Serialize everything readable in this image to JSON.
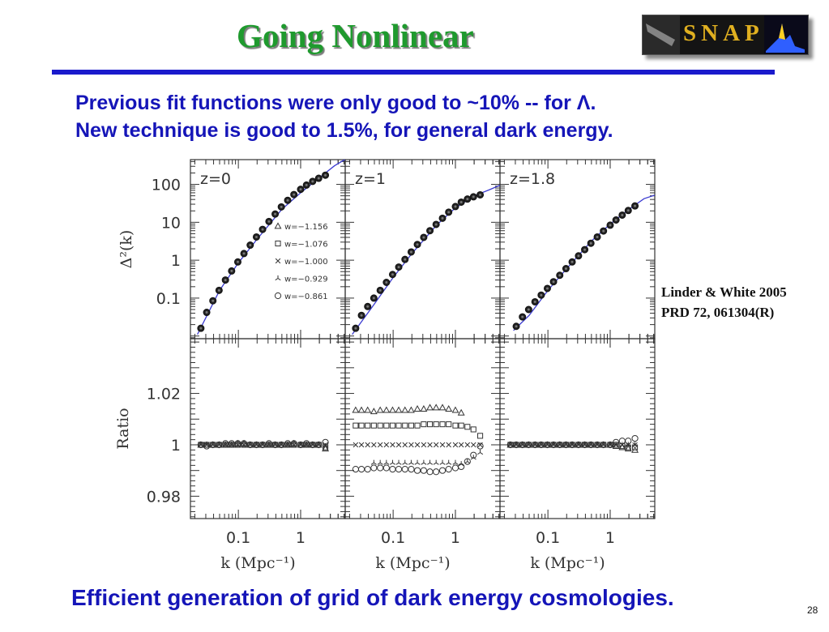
{
  "slide": {
    "title": "Going Nonlinear",
    "bullets": [
      "Previous fit functions were only good to ~10% -- for Λ.",
      "New technique is good to 1.5%, for general dark energy."
    ],
    "citation": [
      "Linder & White 2005",
      "PRD 72, 061304(R)"
    ],
    "footer": "Efficient generation of grid of dark energy cosmologies.",
    "page_number": "28",
    "logo_text": "SNAP"
  },
  "colors": {
    "title": "#1f9a2e",
    "rule": "#1a1acc",
    "text": "#1515b8",
    "model_curve": "#3a3ad0",
    "markers": "#333333"
  },
  "chart_data": {
    "type": "scatter",
    "layout": "2 rows x 3 columns",
    "x": {
      "label": "k (Mpc⁻¹)",
      "scale": "log",
      "tick_labels": [
        "0.1",
        "1"
      ],
      "tick_values": [
        0.1,
        1
      ]
    },
    "top": {
      "ylabel": "Δ²(k)",
      "scale": "log",
      "tick_labels": [
        "100",
        "10",
        "1",
        "0.1"
      ],
      "tick_values": [
        100,
        10,
        1,
        0.1
      ]
    },
    "bottom": {
      "ylabel": "Ratio",
      "tick_labels": [
        "1.02",
        "1",
        "0.98"
      ],
      "tick_values": [
        1.02,
        1.0,
        0.98
      ]
    },
    "legend": {
      "placement": "inside lower-right of first top panel",
      "entries": [
        {
          "symbol": "triangle",
          "label": "w=−1.156"
        },
        {
          "symbol": "square",
          "label": "w=−1.076"
        },
        {
          "symbol": "x",
          "label": "w=−1.000"
        },
        {
          "symbol": "tri-star",
          "label": "w=−0.929"
        },
        {
          "symbol": "circle",
          "label": "w=−0.861"
        }
      ]
    },
    "panels": [
      {
        "label": "z=0",
        "k": [
          0.025,
          0.031,
          0.039,
          0.049,
          0.062,
          0.078,
          0.098,
          0.123,
          0.155,
          0.195,
          0.245,
          0.31,
          0.39,
          0.49,
          0.62,
          0.78,
          1.0,
          1.24,
          1.56,
          1.95,
          2.5
        ],
        "delta2": [
          0.016,
          0.042,
          0.085,
          0.16,
          0.3,
          0.52,
          0.9,
          1.5,
          2.5,
          4.1,
          6.5,
          10.5,
          16.5,
          25.5,
          38,
          54,
          74,
          96,
          120,
          145,
          175
        ],
        "model": {
          "k": [
            0.022,
            0.05,
            0.1,
            0.2,
            0.5,
            1,
            2,
            3.5,
            5.2
          ],
          "delta2": [
            0.011,
            0.16,
            0.85,
            3.6,
            22,
            60,
            150,
            310,
            460
          ]
        },
        "ratio": {
          "k": [
            0.025,
            0.031,
            0.039,
            0.049,
            0.062,
            0.078,
            0.098,
            0.123,
            0.155,
            0.195,
            0.245,
            0.31,
            0.39,
            0.49,
            0.62,
            0.78,
            1.0,
            1.24,
            1.56,
            1.95,
            2.5
          ],
          "w=−1.156": [
            1.0,
            1.0,
            1.0,
            1.0,
            1.0,
            1.0,
            1.0005,
            1.0005,
            1.0,
            1.0,
            1.0,
            1.0,
            1.0,
            1.0,
            1.0,
            1.0005,
            1.0,
            1.0,
            1.0,
            1.0,
            0.9985
          ],
          "w=−1.076": [
            1.0,
            1.0,
            1.0,
            1.0,
            1.0,
            1.0,
            1.0,
            1.0,
            1.0,
            1.0,
            1.0,
            1.0,
            1.0,
            1.0,
            1.0,
            1.0,
            1.0,
            1.0,
            1.0,
            1.0,
            0.999
          ],
          "w=−1.000": [
            1.0,
            1.0,
            1.0,
            1.0,
            1.0,
            1.0,
            1.0,
            1.0,
            1.0,
            1.0,
            1.0,
            1.0,
            1.0,
            1.0,
            1.0,
            1.0,
            1.0,
            1.0,
            1.0,
            1.0,
            1.0
          ],
          "w=−0.929": [
            1.0,
            1.0,
            1.0,
            1.0,
            1.0,
            1.0,
            1.0,
            1.0,
            1.0,
            1.0,
            1.0,
            1.0,
            1.0,
            1.0,
            1.0,
            1.0,
            1.0,
            1.0,
            1.0,
            1.0,
            0.9995
          ],
          "w=−0.861": [
            1.0,
            0.9995,
            1.0,
            1.0,
            1.0005,
            1.0005,
            1.0005,
            1.0005,
            1.0,
            1.0,
            1.0,
            1.0005,
            1.0,
            1.0,
            1.0005,
            1.0005,
            1.0,
            1.0005,
            1.0,
            1.0,
            1.001
          ]
        }
      },
      {
        "label": "z=1",
        "k": [
          0.025,
          0.031,
          0.039,
          0.049,
          0.062,
          0.078,
          0.098,
          0.123,
          0.155,
          0.195,
          0.245,
          0.31,
          0.39,
          0.49,
          0.62,
          0.78,
          1.0,
          1.24,
          1.56,
          1.95,
          2.5
        ],
        "delta2": [
          0.016,
          0.035,
          0.06,
          0.1,
          0.16,
          0.26,
          0.42,
          0.66,
          1.05,
          1.65,
          2.6,
          4.0,
          6.0,
          8.8,
          12.8,
          18.5,
          26,
          34,
          41,
          47,
          53
        ],
        "model": {
          "k": [
            0.022,
            0.05,
            0.1,
            0.2,
            0.5,
            1,
            2,
            3.5,
            5.2
          ],
          "delta2": [
            0.011,
            0.07,
            0.35,
            1.5,
            8.5,
            24,
            50,
            72,
            95
          ]
        },
        "ratio": {
          "k": [
            0.025,
            0.031,
            0.039,
            0.049,
            0.062,
            0.078,
            0.098,
            0.123,
            0.155,
            0.195,
            0.245,
            0.31,
            0.39,
            0.49,
            0.62,
            0.78,
            1.0,
            1.24,
            1.56,
            1.95,
            2.5
          ],
          "w=−1.156": [
            1.0135,
            1.0135,
            1.0135,
            1.013,
            1.0135,
            1.0135,
            1.0135,
            1.0135,
            1.0135,
            1.0135,
            1.014,
            1.014,
            1.0145,
            1.0145,
            1.0145,
            1.014,
            1.0135,
            1.0125,
            null,
            null,
            null
          ],
          "w=−1.076": [
            1.0075,
            1.0075,
            1.0075,
            1.0075,
            1.0075,
            1.0075,
            1.0075,
            1.0075,
            1.0075,
            1.0075,
            1.0075,
            1.008,
            1.008,
            1.008,
            1.008,
            1.008,
            1.0075,
            1.0075,
            1.007,
            1.006,
            1.0035
          ],
          "w=−1.000": [
            1.0,
            1.0,
            1.0,
            1.0,
            1.0,
            1.0,
            1.0,
            1.0,
            1.0,
            1.0,
            1.0,
            1.0,
            1.0,
            1.0,
            1.0,
            1.0,
            1.0,
            1.0,
            1.0,
            1.0,
            1.0
          ],
          "w=−0.929": [
            null,
            null,
            null,
            0.993,
            0.993,
            0.993,
            0.993,
            0.993,
            0.993,
            0.993,
            0.993,
            0.993,
            0.993,
            0.993,
            0.993,
            0.993,
            0.993,
            0.9925,
            0.9935,
            0.995,
            0.997
          ],
          "w=−0.861": [
            0.9905,
            0.9905,
            0.9905,
            0.991,
            0.991,
            0.991,
            0.9905,
            0.9905,
            0.9905,
            0.9905,
            0.99,
            0.99,
            0.9895,
            0.9895,
            0.99,
            0.9905,
            0.991,
            0.9915,
            0.9935,
            0.996,
            0.9995
          ]
        }
      },
      {
        "label": "z=1.8",
        "k": [
          0.031,
          0.039,
          0.049,
          0.062,
          0.078,
          0.098,
          0.123,
          0.155,
          0.195,
          0.245,
          0.31,
          0.39,
          0.49,
          0.62,
          0.78,
          1.0,
          1.24,
          1.56,
          1.95,
          2.5
        ],
        "delta2": [
          0.018,
          0.032,
          0.05,
          0.08,
          0.12,
          0.18,
          0.27,
          0.4,
          0.6,
          0.9,
          1.3,
          1.9,
          2.8,
          4.1,
          5.9,
          8.4,
          11.5,
          15.5,
          20.5,
          27
        ],
        "model": {
          "k": [
            0.028,
            0.05,
            0.1,
            0.2,
            0.5,
            1,
            2,
            3.5,
            5.2
          ],
          "delta2": [
            0.014,
            0.035,
            0.16,
            0.6,
            3.2,
            9,
            22,
            42,
            52
          ]
        },
        "ratio": {
          "k": [
            0.025,
            0.031,
            0.039,
            0.049,
            0.062,
            0.078,
            0.098,
            0.123,
            0.155,
            0.195,
            0.245,
            0.31,
            0.39,
            0.49,
            0.62,
            0.78,
            1.0,
            1.24,
            1.56,
            1.95,
            2.5
          ],
          "w=−1.156": [
            1.0,
            1.0,
            1.0,
            1.0,
            1.0,
            1.0,
            1.0,
            1.0,
            1.0,
            1.0,
            1.0,
            1.0,
            1.0,
            1.0,
            1.0,
            1.0,
            1.0,
            0.9995,
            0.999,
            0.9985,
            0.998
          ],
          "w=−1.076": [
            1.0,
            1.0,
            1.0,
            1.0,
            1.0,
            1.0,
            1.0,
            1.0,
            1.0,
            1.0,
            1.0,
            1.0,
            1.0,
            1.0,
            1.0,
            1.0,
            1.0,
            1.0,
            0.9995,
            0.999,
            0.999
          ],
          "w=−1.000": [
            1.0,
            1.0,
            1.0,
            1.0,
            1.0,
            1.0,
            1.0,
            1.0,
            1.0,
            1.0,
            1.0,
            1.0,
            1.0,
            1.0,
            1.0,
            1.0,
            1.0,
            1.0,
            1.0,
            1.0,
            1.0
          ],
          "w=−0.929": [
            1.0,
            1.0,
            1.0,
            1.0,
            1.0,
            1.0,
            1.0,
            1.0,
            1.0,
            1.0,
            1.0,
            1.0,
            1.0,
            1.0,
            1.0,
            1.0,
            1.0,
            1.0,
            1.0,
            1.0,
            1.0
          ],
          "w=−0.861": [
            1.0,
            1.0,
            1.0,
            1.0,
            1.0,
            1.0,
            1.0,
            1.0,
            1.0,
            1.0,
            1.0,
            1.0,
            1.0,
            1.0,
            1.0,
            1.0,
            1.0,
            1.001,
            1.0015,
            1.0015,
            1.0025
          ]
        }
      }
    ]
  }
}
